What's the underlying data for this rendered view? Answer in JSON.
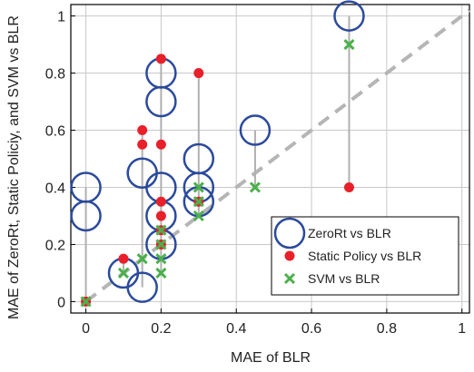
{
  "chart_data": {
    "type": "scatter",
    "x_label": "MAE of BLR",
    "y_label": "MAE of ZeroRt, Static Policiy, and SVM vs BLR",
    "xlim": [
      -0.04,
      1.02
    ],
    "ylim": [
      -0.04,
      1.04
    ],
    "xticks": [
      0,
      0.2,
      0.4,
      0.6,
      0.8,
      1
    ],
    "yticks": [
      0,
      0.2,
      0.4,
      0.6,
      0.8,
      1
    ],
    "grid": true,
    "legend": "lower right",
    "series": [
      {
        "name": "ZeroRt vs BLR",
        "color": "#2b4a9c",
        "marker": "circle",
        "x": [
          0,
          0,
          0.1,
          0.15,
          0.15,
          0.2,
          0.2,
          0.2,
          0.2,
          0.2,
          0.3,
          0.3,
          0.3,
          0.45,
          0.7
        ],
        "values": [
          0.4,
          0.3,
          0.1,
          0.45,
          0.05,
          0.8,
          0.7,
          0.4,
          0.3,
          0.2,
          0.5,
          0.4,
          0.35,
          0.6,
          1.0
        ]
      },
      {
        "name": "Static Policy vs BLR",
        "color": "#e8202a",
        "marker": "dot",
        "x": [
          0,
          0.1,
          0.15,
          0.15,
          0.2,
          0.2,
          0.2,
          0.2,
          0.2,
          0.2,
          0.3,
          0.3,
          0.7
        ],
        "values": [
          0,
          0.15,
          0.6,
          0.55,
          0.85,
          0.55,
          0.35,
          0.3,
          0.25,
          0.2,
          0.8,
          0.35,
          0.4
        ]
      },
      {
        "name": "SVM vs BLR",
        "color": "#4cb04c",
        "marker": "x",
        "x": [
          0,
          0.1,
          0.15,
          0.2,
          0.2,
          0.2,
          0.2,
          0.3,
          0.3,
          0.3,
          0.45,
          0.7
        ],
        "values": [
          0,
          0.1,
          0.15,
          0.25,
          0.2,
          0.15,
          0.1,
          0.4,
          0.35,
          0.3,
          0.4,
          0.9
        ]
      }
    ]
  }
}
